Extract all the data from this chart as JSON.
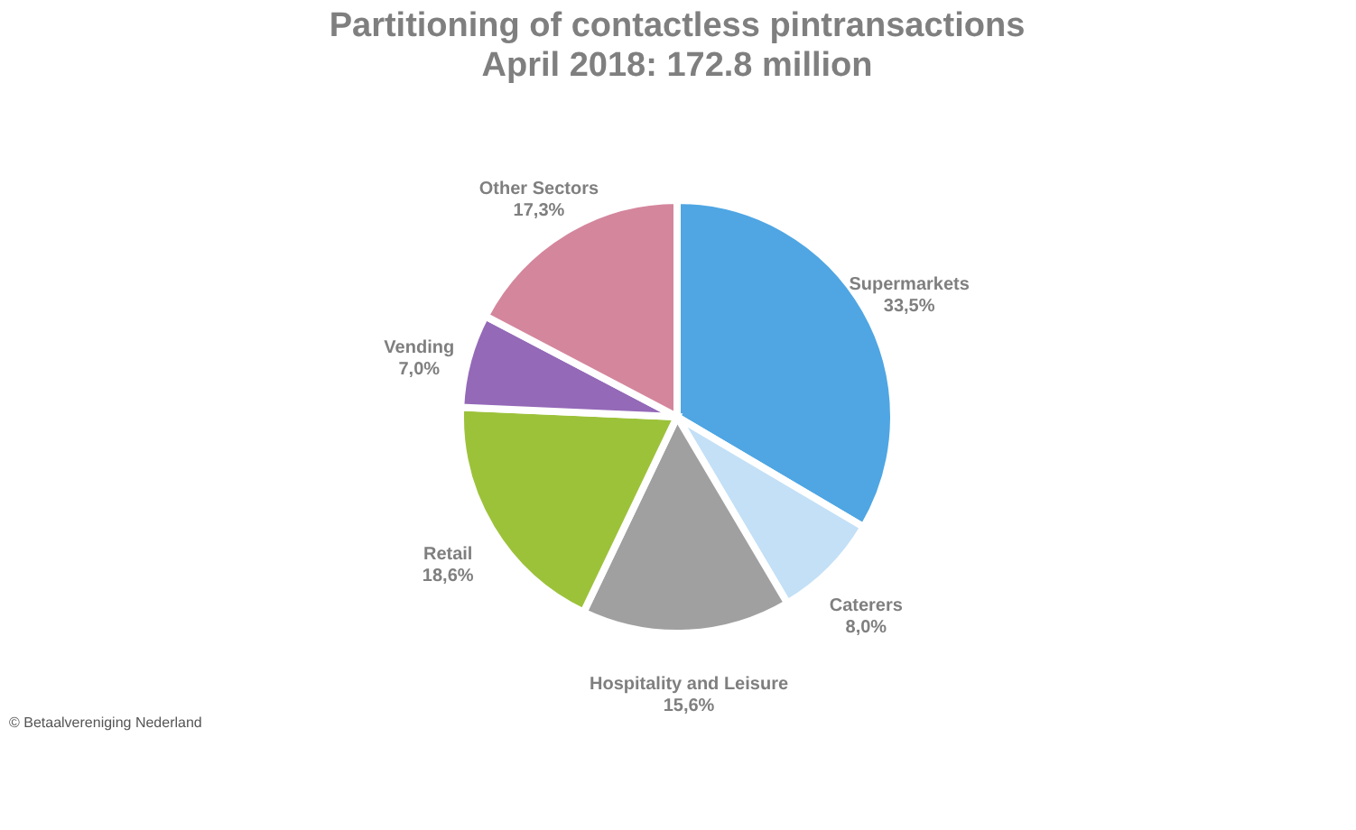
{
  "chart_data": {
    "type": "pie",
    "title": "Partitioning of contactless pintransactions",
    "subtitle": "April 2018: 172.8 million",
    "categories": [
      "Supermarkets",
      "Caterers",
      "Hospitality and Leisure",
      "Retail",
      "Vending",
      "Other Sectors"
    ],
    "values": [
      33.5,
      8.0,
      15.6,
      18.6,
      7.0,
      17.3
    ],
    "value_labels": [
      "33,5%",
      "8,0%",
      "15,6%",
      "18,6%",
      "7,0%",
      "17,3%"
    ],
    "colors": [
      "#4fa6e3",
      "#c3e0f6",
      "#a0a0a0",
      "#9cc23a",
      "#9469b8",
      "#d4869d"
    ],
    "annotations": [
      "© Betaalvereniging Nederland"
    ]
  }
}
